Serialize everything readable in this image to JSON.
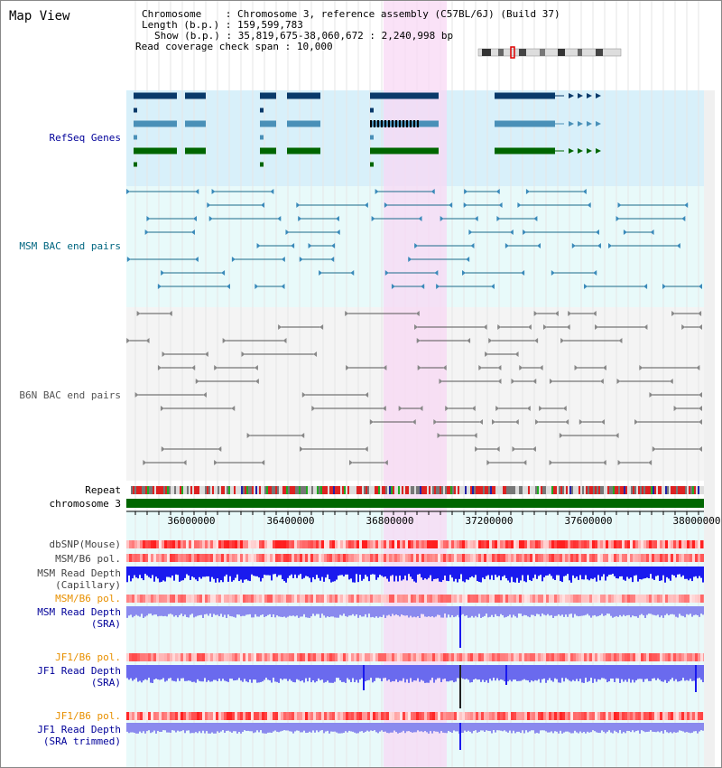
{
  "header": {
    "title": "Map View",
    "chromosome_label": "Chromosome",
    "chromosome": "Chromosome 3, reference assembly (C57BL/6J) (Build 37)",
    "length_label": "Length (b.p.)",
    "length": "159,599,783",
    "show_label": "Show (b.p.)",
    "show": "35,819,675-38,060,672 : 2,240,998 bp",
    "coverage_label": "Read coverage check span",
    "coverage": "10,000"
  },
  "tracks": {
    "refseq": "RefSeq Genes",
    "msm_bac": "MSM BAC end pairs",
    "b6n_bac": "B6N BAC end pairs",
    "repeat": "Repeat",
    "chromosome": "chromosome 3",
    "dbsnp": "dbSNP(Mouse)",
    "msm_b6_pol_1": "MSM/B6 pol.",
    "msm_depth_cap": "MSM Read Depth\n(Capillary)",
    "msm_b6_pol_2": "MSM/B6 pol.",
    "msm_depth_sra": "MSM Read Depth\n(SRA)",
    "jf1_b6_pol_1": "JF1/B6 pol.",
    "jf1_depth_sra": "JF1 Read Depth\n(SRA)",
    "jf1_b6_pol_2": "JF1/B6 pol.",
    "jf1_depth_trim": "JF1 Read Depth\n(SRA trimmed)"
  },
  "axis": {
    "ticks": [
      "36000000",
      "36400000",
      "36800000",
      "37200000",
      "37600000",
      "38000000"
    ]
  },
  "colors": {
    "refseq_bg": "#d8f0fa",
    "bac_bg": "#e8fafa",
    "highlight": "#f8d8f4",
    "chromosome": "#006600",
    "label_blue": "#000099",
    "label_orange": "#e89000",
    "label_teal": "#006680",
    "label_gray": "#555555"
  }
}
